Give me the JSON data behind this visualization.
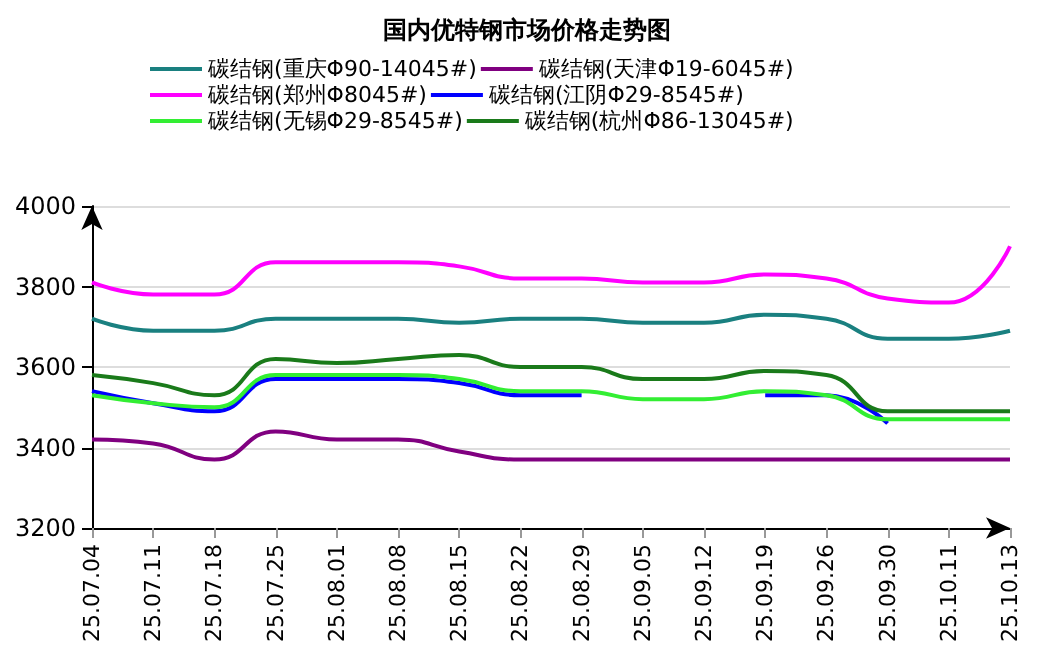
{
  "chart_data": {
    "type": "line",
    "title": "国内优特钢市场价格走势图",
    "categories": [
      "25.07.04",
      "25.07.11",
      "25.07.18",
      "25.07.25",
      "25.08.01",
      "25.08.08",
      "25.08.15",
      "25.08.22",
      "25.08.29",
      "25.09.05",
      "25.09.12",
      "25.09.19",
      "25.09.26",
      "25.09.30",
      "25.10.11",
      "25.10.13"
    ],
    "series": [
      {
        "name": "碳结钢(重庆Φ90-14045#)",
        "color": "#1a8080",
        "values": [
          3720,
          3690,
          3690,
          3720,
          3720,
          3720,
          3710,
          3720,
          3720,
          3710,
          3710,
          3730,
          3720,
          3670,
          3670,
          3690
        ]
      },
      {
        "name": "碳结钢(天津Φ19-6045#)",
        "color": "#800080",
        "values": [
          3420,
          3410,
          3370,
          3440,
          3420,
          3420,
          3390,
          3370,
          3370,
          3370,
          3370,
          3370,
          3370,
          3370,
          3370,
          3370
        ]
      },
      {
        "name": "碳结钢(郑州Φ8045#)",
        "color": "#ff00ff",
        "values": [
          3810,
          3780,
          3780,
          3860,
          3860,
          3860,
          3850,
          3820,
          3820,
          3810,
          3810,
          3830,
          3820,
          3770,
          3760,
          3900
        ]
      },
      {
        "name": "碳结钢(江阴Φ29-8545#)",
        "color": "#0000ff",
        "values": [
          3540,
          3510,
          3490,
          3570,
          3570,
          3570,
          3560,
          3530,
          3530,
          null,
          null,
          3530,
          3530,
          3460,
          null,
          null
        ]
      },
      {
        "name": "碳结钢(无锡Φ29-8545#)",
        "color": "#33ee33",
        "values": [
          3530,
          3510,
          3500,
          3580,
          3580,
          3580,
          3570,
          3540,
          3540,
          3520,
          3520,
          3540,
          3530,
          3470,
          3470,
          3470
        ]
      },
      {
        "name": "碳结钢(杭州Φ86-13045#)",
        "color": "#1a7a1a",
        "values": [
          3580,
          3560,
          3530,
          3620,
          3610,
          3620,
          3630,
          3600,
          3600,
          3570,
          3570,
          3590,
          3580,
          3490,
          3490,
          3490
        ]
      }
    ],
    "ylim": [
      3200,
      4000
    ],
    "yticks": [
      3200,
      3400,
      3600,
      3800,
      4000
    ],
    "grid": "y",
    "legend": "top",
    "marker": "none",
    "line_style": "solid"
  }
}
